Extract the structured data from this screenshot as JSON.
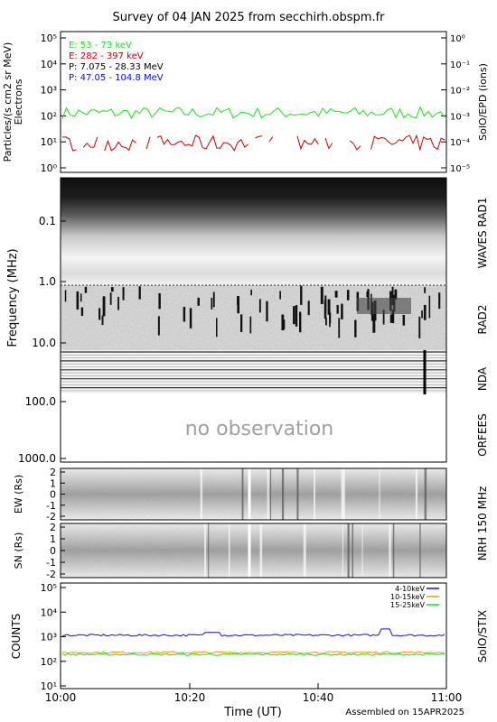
{
  "title": "Survey of 04 JAN 2025 from secchirh.obspm.fr",
  "footer": "Assembled on 15APR2025",
  "colors": {
    "green": "#22dd22",
    "red": "#cc0000",
    "blue": "#1010cc",
    "orange": "#ff9900"
  },
  "chart_data": [
    {
      "type": "line",
      "panel": "SolO/EPD",
      "ylabel": "Particles/(s cm2 sr MeV)",
      "ylabel2": "Electrons",
      "ylabel_right": "SolO/EPD (ions)",
      "yscale": "log",
      "ylim": [
        1,
        100000
      ],
      "yticks_left": [
        "10⁰",
        "10¹",
        "10²",
        "10³",
        "10⁴",
        "10⁵"
      ],
      "yticks_right": [
        "10⁻⁵",
        "10⁻⁴",
        "10⁻³",
        "10⁻²",
        "10⁻¹",
        "10⁰"
      ],
      "series": [
        {
          "name": "E: 53 - 73 keV",
          "color": "#22dd22",
          "level": 130,
          "spread": 0.45
        },
        {
          "name": "E: 282 - 397 keV",
          "color": "#cc0000",
          "level": 9,
          "spread": 0.5
        },
        {
          "name": "P: 7.075 - 28.33 MeV",
          "color": "#000000"
        },
        {
          "name": "P: 47.05 - 104.8 MeV",
          "color": "#1010cc"
        }
      ]
    },
    {
      "type": "heatmap",
      "panel": "Radio spectrogram",
      "ylabel": "Frequency (MHz)",
      "yticks": [
        "0.1",
        "1.0",
        "10.0",
        "100.0",
        "1000.0"
      ],
      "right_labels": [
        "WAVES RAD1",
        "RAD2",
        "NDA",
        "ORFEES"
      ],
      "annotation": "no observation"
    },
    {
      "type": "heatmap",
      "panel": "NRH 150 MHz",
      "right_label": "NRH 150 MHz",
      "subpanels": [
        {
          "ylabel": "EW (Rs)",
          "yticks": [
            "2",
            "1",
            "0",
            "-1",
            "-2"
          ]
        },
        {
          "ylabel": "SN (Rs)",
          "yticks": [
            "2",
            "1",
            "0",
            "-1",
            "-2"
          ]
        }
      ]
    },
    {
      "type": "line",
      "panel": "SolO/STIX",
      "ylabel": "COUNTS",
      "ylabel_right": "SolO/STIX",
      "yscale": "log",
      "ylim": [
        10,
        100000
      ],
      "yticks": [
        "10¹",
        "10²",
        "10³",
        "10⁴",
        "10⁵"
      ],
      "series": [
        {
          "name": "4-10keV",
          "color": "#1010cc",
          "level": 1150
        },
        {
          "name": "10-15keV",
          "color": "#ff9900",
          "level": 230
        },
        {
          "name": "15-25keV",
          "color": "#22dd22",
          "level": 190
        }
      ]
    }
  ],
  "xaxis": {
    "label": "Time (UT)",
    "ticks": [
      "10:00",
      "10:20",
      "10:40",
      "11:00"
    ]
  }
}
